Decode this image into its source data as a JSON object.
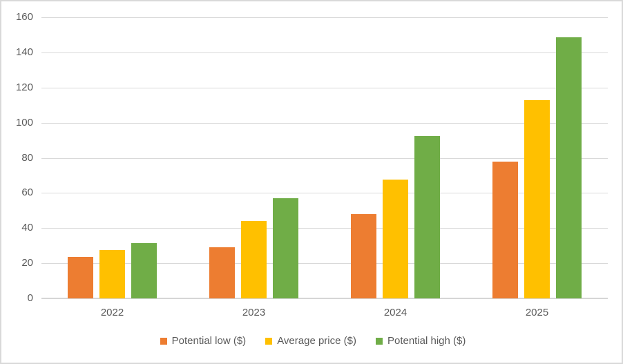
{
  "chart_data": {
    "type": "bar",
    "title": "",
    "categories": [
      "2022",
      "2023",
      "2024",
      "2025"
    ],
    "series": [
      {
        "name": "Potential low ($)",
        "color": "#ED7D31",
        "values": [
          23.5,
          29,
          48,
          78
        ]
      },
      {
        "name": "Average price ($)",
        "color": "#FFC000",
        "values": [
          27.5,
          44,
          67.5,
          113
        ]
      },
      {
        "name": "Potential high ($)",
        "color": "#70AD47",
        "values": [
          31.5,
          57,
          92.5,
          148.5
        ]
      }
    ],
    "xlabel": "",
    "ylabel": "",
    "ylim": [
      0,
      160
    ],
    "yticks": [
      0,
      20,
      40,
      60,
      80,
      100,
      120,
      140,
      160
    ],
    "grid": true,
    "legend_position": "bottom"
  },
  "colors": {
    "gridline": "#d9d9d9",
    "axis_line": "#d6d6d6",
    "text": "#595959",
    "border": "#d9d9d9",
    "background": "#ffffff"
  }
}
